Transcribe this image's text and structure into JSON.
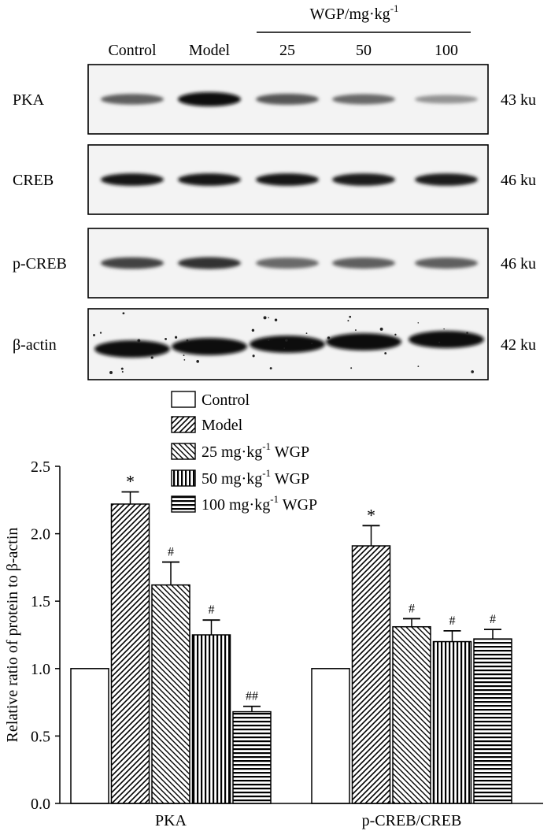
{
  "blot": {
    "group_header": "WGP/mg·kg",
    "group_header_sup": "-1",
    "lanes": [
      "Control",
      "Model",
      "25",
      "50",
      "100"
    ],
    "rows": [
      {
        "name": "PKA",
        "size": "43 ku",
        "intensity": [
          0.55,
          1.0,
          0.6,
          0.5,
          0.28
        ]
      },
      {
        "name": "CREB",
        "size": "46 ku",
        "intensity": [
          0.95,
          0.92,
          0.92,
          0.9,
          0.9
        ]
      },
      {
        "name": "p-CREB",
        "size": "46 ku",
        "intensity": [
          0.7,
          0.8,
          0.5,
          0.55,
          0.55
        ]
      },
      {
        "name": "β-actin",
        "size": "42 ku",
        "intensity": [
          1.0,
          1.0,
          1.0,
          1.0,
          1.0
        ]
      }
    ]
  },
  "chart_data": {
    "type": "bar",
    "categories": [
      "PKA",
      "p-CREB/CREB"
    ],
    "ylabel": "Relative ratio of protein to β-actin",
    "ylim": [
      0,
      2.5
    ],
    "yticks": [
      "0.0",
      "0.5",
      "1.0",
      "1.5",
      "2.0",
      "2.5"
    ],
    "legend_position": "top",
    "series": [
      {
        "name": "Control",
        "pattern": "none",
        "values": [
          1.0,
          1.0
        ],
        "errors": [
          0,
          0
        ],
        "marks": [
          "",
          ""
        ]
      },
      {
        "name": "Model",
        "pattern": "diagonal-right",
        "values": [
          2.22,
          1.91
        ],
        "errors": [
          0.09,
          0.15
        ],
        "marks": [
          "*",
          "*"
        ]
      },
      {
        "name": "25 mg·kg",
        "name_sup": "-1",
        "name_tail": " WGP",
        "pattern": "diagonal-left",
        "values": [
          1.62,
          1.31
        ],
        "errors": [
          0.17,
          0.06
        ],
        "marks": [
          "#",
          "#"
        ]
      },
      {
        "name": "50 mg·kg",
        "name_sup": "-1",
        "name_tail": " WGP",
        "pattern": "vertical",
        "values": [
          1.25,
          1.2
        ],
        "errors": [
          0.11,
          0.08
        ],
        "marks": [
          "#",
          "#"
        ]
      },
      {
        "name": "100 mg·kg",
        "name_sup": "-1",
        "name_tail": " WGP",
        "pattern": "horizontal",
        "values": [
          0.68,
          1.22
        ],
        "errors": [
          0.04,
          0.07
        ],
        "marks": [
          "##",
          "#"
        ]
      }
    ]
  }
}
